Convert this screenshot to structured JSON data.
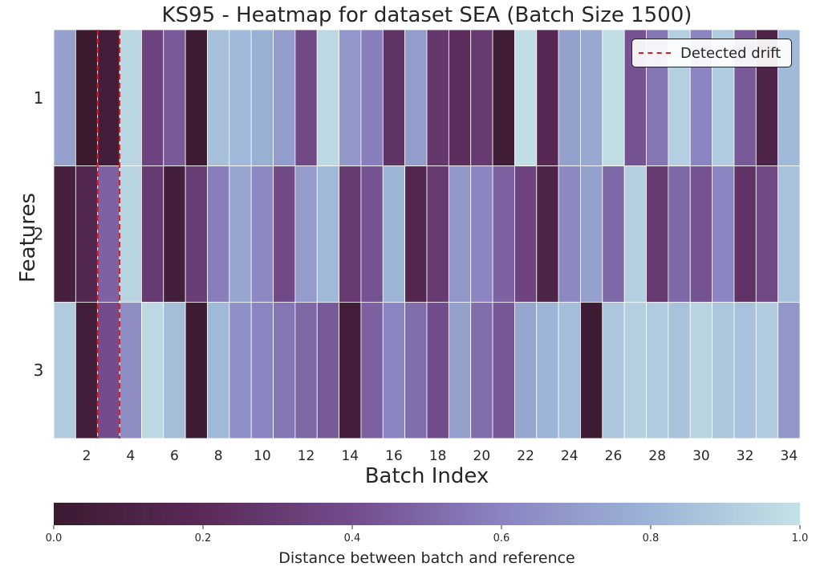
{
  "chart_data": {
    "type": "heatmap",
    "title": "KS95 - Heatmap for dataset SEA (Batch Size 1500)",
    "xlabel": "Batch Index",
    "ylabel": "Features",
    "x": [
      1,
      2,
      3,
      4,
      5,
      6,
      7,
      8,
      9,
      10,
      11,
      12,
      13,
      14,
      15,
      16,
      17,
      18,
      19,
      20,
      21,
      22,
      23,
      24,
      25,
      26,
      27,
      28,
      29,
      30,
      31,
      32,
      33,
      34
    ],
    "x_tick_labels": [
      "2",
      "4",
      "6",
      "8",
      "10",
      "12",
      "14",
      "16",
      "18",
      "20",
      "22",
      "24",
      "26",
      "28",
      "30",
      "32",
      "34"
    ],
    "y_tick_labels": [
      "1",
      "2",
      "3"
    ],
    "values": [
      [
        0.72,
        0.0,
        0.05,
        0.95,
        0.35,
        0.45,
        0.02,
        0.85,
        0.82,
        0.78,
        0.7,
        0.38,
        0.96,
        0.68,
        0.58,
        0.25,
        0.7,
        0.28,
        0.22,
        0.3,
        0.04,
        0.98,
        0.18,
        0.72,
        0.75,
        0.98,
        0.42,
        0.55,
        0.92,
        0.6,
        0.9,
        0.45,
        0.12,
        0.82
      ],
      [
        0.08,
        0.15,
        0.48,
        0.94,
        0.3,
        0.06,
        0.32,
        0.58,
        0.74,
        0.62,
        0.38,
        0.7,
        0.82,
        0.3,
        0.42,
        0.8,
        0.15,
        0.3,
        0.68,
        0.6,
        0.48,
        0.35,
        0.12,
        0.62,
        0.72,
        0.5,
        0.92,
        0.3,
        0.5,
        0.42,
        0.6,
        0.25,
        0.38,
        0.86
      ],
      [
        0.9,
        0.05,
        0.4,
        0.64,
        0.96,
        0.84,
        0.02,
        0.82,
        0.65,
        0.6,
        0.55,
        0.5,
        0.45,
        0.05,
        0.48,
        0.6,
        0.52,
        0.4,
        0.72,
        0.52,
        0.44,
        0.74,
        0.8,
        0.84,
        0.02,
        0.88,
        0.92,
        0.9,
        0.86,
        0.94,
        0.88,
        0.86,
        0.9,
        0.68
      ]
    ],
    "vmin": 0,
    "vmax": 1,
    "colorbar": {
      "label": "Distance between batch and reference",
      "ticks": [
        "0.0",
        "0.2",
        "0.4",
        "0.6",
        "0.8",
        "1.0"
      ]
    },
    "drift_lines": [
      2.5,
      3.5
    ],
    "drift_color": "#e31a1c",
    "legend": {
      "label": "Detected drift",
      "placement": "top-right"
    },
    "colormap": [
      "#3b1a30",
      "#5a2a58",
      "#734c8c",
      "#8a84c0",
      "#9cb4d6",
      "#c4e2e6"
    ],
    "grid": false
  }
}
